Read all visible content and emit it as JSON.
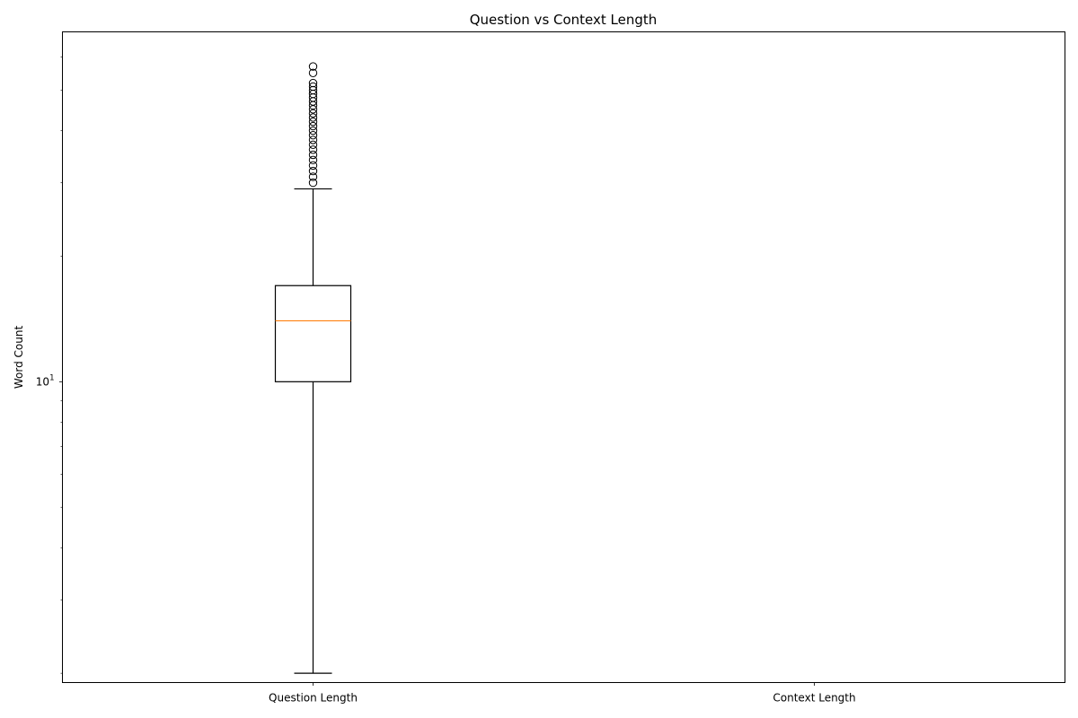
{
  "chart_data": {
    "type": "box",
    "title": "Question vs Context Length",
    "xlabel": "",
    "ylabel": "Word Count",
    "yscale": "log",
    "ylim": [
      1.9,
      69
    ],
    "grid": false,
    "categories": [
      "Question Length",
      "Context Length"
    ],
    "y_tick_labels": [
      {
        "value": 10,
        "base": "10",
        "exp": "1"
      }
    ],
    "boxes": [
      {
        "category": "Question Length",
        "whisker_low": 2,
        "q1": 10,
        "median": 14,
        "q3": 17,
        "whisker_high": 29,
        "outliers": [
          30,
          31,
          32,
          33,
          34,
          35,
          36,
          37,
          38,
          39,
          40,
          41,
          42,
          43,
          44,
          45,
          46,
          47,
          48,
          49,
          50,
          51,
          52,
          55,
          57
        ]
      },
      {
        "category": "Context Length",
        "empty": true
      }
    ],
    "colors": {
      "box": "#000000",
      "median": "#ff7f0e",
      "outlier": "#000000"
    }
  }
}
